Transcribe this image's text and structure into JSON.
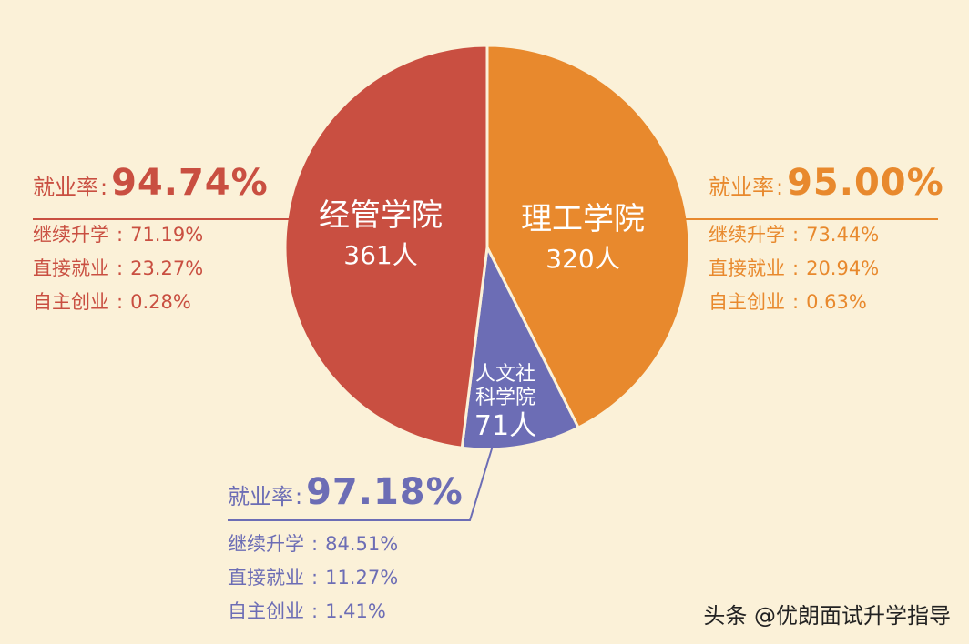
{
  "chart_data": {
    "type": "pie",
    "slices": [
      {
        "label": "经管学院",
        "value_label": "361人",
        "value": 361,
        "color": "#c94f41"
      },
      {
        "label": "理工学院",
        "value_label": "320人",
        "value": 320,
        "color": "#e8892d"
      },
      {
        "label_lines": [
          "人文社",
          "科学院"
        ],
        "value_label": "71人",
        "value": 71,
        "color": "#6c6db5"
      }
    ],
    "panels": [
      {
        "id": "left",
        "color": "#c94f41",
        "rate_label": "就业率",
        "colon": ":",
        "rate_value": "94.74%",
        "stats": [
          {
            "label": "继续升学",
            "colon": ":",
            "value": "71.19%"
          },
          {
            "label": "直接就业",
            "colon": ":",
            "value": "23.27%"
          },
          {
            "label": "自主创业",
            "colon": ":",
            "value": "0.28%"
          }
        ]
      },
      {
        "id": "right",
        "color": "#e8892d",
        "rate_label": "就业率",
        "colon": ":",
        "rate_value": "95.00%",
        "stats": [
          {
            "label": "继续升学",
            "colon": ":",
            "value": "73.44%"
          },
          {
            "label": "直接就业",
            "colon": ":",
            "value": "20.94%"
          },
          {
            "label": "自主创业",
            "colon": ":",
            "value": "0.63%"
          }
        ]
      },
      {
        "id": "bottom",
        "color": "#6c6db5",
        "rate_label": "就业率",
        "colon": ":",
        "rate_value": "97.18%",
        "stats": [
          {
            "label": "继续升学",
            "colon": ":",
            "value": "84.51%"
          },
          {
            "label": "直接就业",
            "colon": ":",
            "value": "11.27%"
          },
          {
            "label": "自主创业",
            "colon": ":",
            "value": "1.41%"
          }
        ]
      }
    ]
  },
  "watermark": "头条 @优朗面试升学指导"
}
